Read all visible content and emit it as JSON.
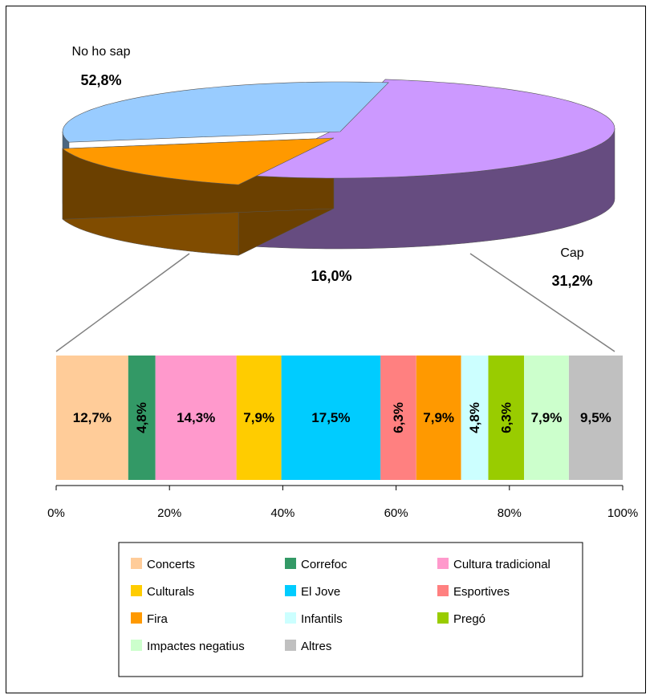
{
  "chart_data": [
    {
      "type": "pie",
      "labels": [
        "No ho sap",
        "",
        "Cap"
      ],
      "values": [
        52.8,
        16.0,
        31.2
      ],
      "value_labels": [
        "52,8%",
        "16,0%",
        "31,2%"
      ],
      "colors": [
        "#cc99ff",
        "#ff9900",
        "#99ccff"
      ],
      "side_colors": [
        "#664c80",
        "#804c00",
        "#4c6680"
      ],
      "exploded_index": 1,
      "three_d": true
    },
    {
      "type": "bar",
      "stacked": "percent",
      "orientation": "horizontal",
      "series": [
        {
          "name": "Concerts",
          "value": 12.7,
          "label": "12,7%",
          "color": "#ffcc99",
          "rotated": false
        },
        {
          "name": "Correfoc",
          "value": 4.8,
          "label": "4,8%",
          "color": "#339966",
          "rotated": true
        },
        {
          "name": "Cultura tradicional",
          "value": 14.3,
          "label": "14,3%",
          "color": "#ff99cc",
          "rotated": false
        },
        {
          "name": "Culturals",
          "value": 7.9,
          "label": "7,9%",
          "color": "#ffcc00",
          "rotated": false
        },
        {
          "name": "El Jove",
          "value": 17.5,
          "label": "17,5%",
          "color": "#00ccff",
          "rotated": false
        },
        {
          "name": "Esportives",
          "value": 6.3,
          "label": "6,3%",
          "color": "#ff8080",
          "rotated": true
        },
        {
          "name": "Fira",
          "value": 7.9,
          "label": "7,9%",
          "color": "#ff9900",
          "rotated": false
        },
        {
          "name": "Infantils",
          "value": 4.8,
          "label": "4,8%",
          "color": "#ccffff",
          "rotated": true
        },
        {
          "name": "Pregó",
          "value": 6.3,
          "label": "6,3%",
          "color": "#99cc00",
          "rotated": true
        },
        {
          "name": "Impactes negatius",
          "value": 7.9,
          "label": "7,9%",
          "color": "#ccffcc",
          "rotated": false
        },
        {
          "name": "Altres",
          "value": 9.5,
          "label": "9,5%",
          "color": "#c0c0c0",
          "rotated": false
        }
      ],
      "x_ticks": [
        "0%",
        "20%",
        "40%",
        "60%",
        "80%",
        "100%"
      ],
      "xlim": [
        0,
        100
      ],
      "legend": {
        "position": "bottom",
        "columns": 3,
        "items": [
          "Concerts",
          "Correfoc",
          "Cultura tradicional",
          "Culturals",
          "El Jove",
          "Esportives",
          "Fira",
          "Infantils",
          "Pregó",
          "Impactes negatius",
          "Altres"
        ]
      }
    }
  ]
}
